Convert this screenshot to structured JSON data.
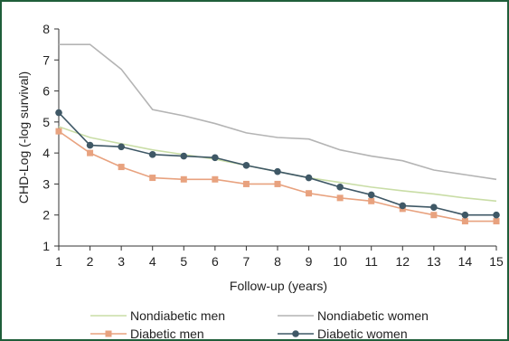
{
  "chart_data": {
    "type": "line",
    "xlabel": "Follow-up (years)",
    "ylabel": "CHD-Log (-log survival)",
    "xlim": [
      1,
      15
    ],
    "ylim": [
      1,
      8
    ],
    "x_ticks": [
      1,
      2,
      3,
      4,
      5,
      6,
      7,
      8,
      9,
      10,
      11,
      12,
      13,
      14,
      15
    ],
    "y_ticks": [
      1,
      2,
      3,
      4,
      5,
      6,
      7,
      8
    ],
    "grid": false,
    "legend_position": "bottom",
    "x": [
      1,
      2,
      3,
      4,
      5,
      6,
      7,
      8,
      9,
      10,
      11,
      12,
      13,
      14,
      15
    ],
    "series": [
      {
        "name": "Nondiabetic men",
        "color": "#c9dda6",
        "marker": "none",
        "values": [
          4.85,
          4.5,
          4.3,
          4.1,
          3.95,
          3.8,
          3.6,
          3.4,
          3.2,
          3.05,
          2.9,
          2.78,
          2.68,
          2.55,
          2.45
        ]
      },
      {
        "name": "Nondiabetic women",
        "color": "#b4b4b4",
        "marker": "none",
        "values": [
          7.5,
          7.5,
          6.7,
          5.4,
          5.2,
          4.95,
          4.65,
          4.5,
          4.45,
          4.1,
          3.9,
          3.75,
          3.45,
          3.3,
          3.15
        ]
      },
      {
        "name": "Diabetic men",
        "color": "#e8a27f",
        "marker": "square",
        "values": [
          4.7,
          4.0,
          3.55,
          3.2,
          3.15,
          3.15,
          3.0,
          3.0,
          2.7,
          2.55,
          2.45,
          2.2,
          2.0,
          1.8,
          1.8
        ]
      },
      {
        "name": "Diabetic women",
        "color": "#3f5866",
        "marker": "circle",
        "values": [
          5.3,
          4.25,
          4.2,
          3.95,
          3.9,
          3.85,
          3.6,
          3.4,
          3.2,
          2.9,
          2.65,
          2.3,
          2.25,
          2.0,
          2.0
        ]
      }
    ]
  }
}
